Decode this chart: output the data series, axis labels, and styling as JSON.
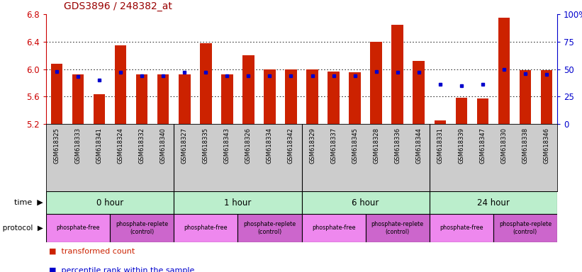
{
  "title": "GDS3896 / 248382_at",
  "samples": [
    "GSM618325",
    "GSM618333",
    "GSM618341",
    "GSM618324",
    "GSM618332",
    "GSM618340",
    "GSM618327",
    "GSM618335",
    "GSM618343",
    "GSM618326",
    "GSM618334",
    "GSM618342",
    "GSM618329",
    "GSM618337",
    "GSM618345",
    "GSM618328",
    "GSM618336",
    "GSM618344",
    "GSM618331",
    "GSM618339",
    "GSM618347",
    "GSM618330",
    "GSM618338",
    "GSM618346"
  ],
  "transformed_count": [
    6.08,
    5.92,
    5.63,
    6.35,
    5.92,
    5.92,
    5.92,
    6.38,
    5.92,
    6.2,
    5.99,
    5.99,
    6.0,
    5.96,
    5.95,
    6.4,
    6.65,
    6.12,
    5.25,
    5.58,
    5.57,
    6.75,
    5.98,
    5.98
  ],
  "percentile_rank": [
    48,
    43,
    40,
    47,
    44,
    44,
    47,
    47,
    44,
    44,
    44,
    44,
    44,
    44,
    44,
    48,
    47,
    47,
    36,
    35,
    36,
    50,
    46,
    45
  ],
  "ymin": 5.2,
  "ymax": 6.8,
  "yticks_left": [
    5.2,
    5.6,
    6.0,
    6.4,
    6.8
  ],
  "grid_lines": [
    6.4,
    6.0,
    5.6
  ],
  "right_yticks": [
    0,
    25,
    50,
    75,
    100
  ],
  "bar_color": "#cc2200",
  "dot_color": "#0000cc",
  "title_color": "#990000",
  "left_tick_color": "#cc0000",
  "right_tick_color": "#0000cc",
  "time_group_color": "#bbeecc",
  "time_groups": [
    {
      "label": "0 hour",
      "start": 0,
      "end": 6
    },
    {
      "label": "1 hour",
      "start": 6,
      "end": 12
    },
    {
      "label": "6 hour",
      "start": 12,
      "end": 18
    },
    {
      "label": "24 hour",
      "start": 18,
      "end": 24
    }
  ],
  "protocol_groups": [
    {
      "label": "phosphate-free",
      "start": 0,
      "end": 3,
      "color": "#ee88ee"
    },
    {
      "label": "phosphate-replete\n(control)",
      "start": 3,
      "end": 6,
      "color": "#cc66cc"
    },
    {
      "label": "phosphate-free",
      "start": 6,
      "end": 9,
      "color": "#ee88ee"
    },
    {
      "label": "phosphate-replete\n(control)",
      "start": 9,
      "end": 12,
      "color": "#cc66cc"
    },
    {
      "label": "phosphate-free",
      "start": 12,
      "end": 15,
      "color": "#ee88ee"
    },
    {
      "label": "phosphate-replete\n(control)",
      "start": 15,
      "end": 18,
      "color": "#cc66cc"
    },
    {
      "label": "phosphate-free",
      "start": 18,
      "end": 21,
      "color": "#ee88ee"
    },
    {
      "label": "phosphate-replete\n(control)",
      "start": 21,
      "end": 24,
      "color": "#cc66cc"
    }
  ],
  "legend": [
    {
      "label": "transformed count",
      "color": "#cc2200"
    },
    {
      "label": "percentile rank within the sample",
      "color": "#0000cc"
    }
  ]
}
